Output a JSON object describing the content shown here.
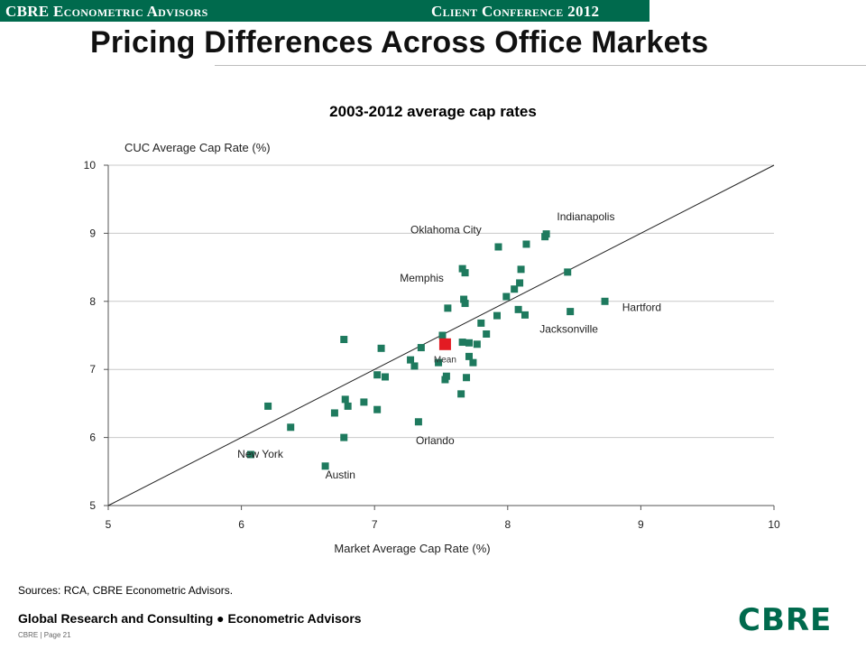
{
  "header": {
    "left_text": "CBRE Econometric Advisors",
    "right_text": "Client Conference 2012",
    "bar_color": "#006A4D"
  },
  "slide_title": "Pricing Differences Across Office Markets",
  "chart_data": {
    "type": "scatter",
    "title": "2003-2012 average cap rates",
    "xlabel": "Market Average Cap Rate (%)",
    "ylabel": "CUC Average Cap Rate (%)",
    "xlim": [
      5,
      10
    ],
    "ylim": [
      5,
      10
    ],
    "xticks": [
      "5",
      "6",
      "7",
      "8",
      "9",
      "10"
    ],
    "yticks": [
      "5",
      "6",
      "7",
      "8",
      "9",
      "10"
    ],
    "grid": "horizontal",
    "reference_line": "45-degree",
    "marker_color": "#1E7A5E",
    "mean_color": "#E31B23",
    "points": [
      [
        6.07,
        5.75
      ],
      [
        6.2,
        6.46
      ],
      [
        6.37,
        6.15
      ],
      [
        6.63,
        5.58
      ],
      [
        6.7,
        6.36
      ],
      [
        6.77,
        6.0
      ],
      [
        6.78,
        6.56
      ],
      [
        6.8,
        6.46
      ],
      [
        6.77,
        7.44
      ],
      [
        6.92,
        6.52
      ],
      [
        7.02,
        6.41
      ],
      [
        7.02,
        6.92
      ],
      [
        7.05,
        7.31
      ],
      [
        7.08,
        6.89
      ],
      [
        7.27,
        7.14
      ],
      [
        7.3,
        7.05
      ],
      [
        7.35,
        7.32
      ],
      [
        7.33,
        6.23
      ],
      [
        7.48,
        7.1
      ],
      [
        7.51,
        7.5
      ],
      [
        7.53,
        6.85
      ],
      [
        7.54,
        6.9
      ],
      [
        7.55,
        7.9
      ],
      [
        7.65,
        6.64
      ],
      [
        7.66,
        8.48
      ],
      [
        7.66,
        7.4
      ],
      [
        7.67,
        8.03
      ],
      [
        7.68,
        8.42
      ],
      [
        7.68,
        7.97
      ],
      [
        7.69,
        6.88
      ],
      [
        7.71,
        7.19
      ],
      [
        7.71,
        7.39
      ],
      [
        7.74,
        7.1
      ],
      [
        7.77,
        7.37
      ],
      [
        7.8,
        7.68
      ],
      [
        7.84,
        7.52
      ],
      [
        7.92,
        7.79
      ],
      [
        7.93,
        8.8
      ],
      [
        7.99,
        8.07
      ],
      [
        8.05,
        8.18
      ],
      [
        8.08,
        7.88
      ],
      [
        8.09,
        8.27
      ],
      [
        8.1,
        8.47
      ],
      [
        8.13,
        7.8
      ],
      [
        8.14,
        8.84
      ],
      [
        8.28,
        8.95
      ],
      [
        8.29,
        8.99
      ],
      [
        8.45,
        8.43
      ],
      [
        8.47,
        7.85
      ],
      [
        8.73,
        8.0
      ]
    ],
    "mean": {
      "x": 7.53,
      "y": 7.37,
      "label": "Mean"
    },
    "annotations": [
      {
        "text": "Indianapolis",
        "x": 8.37,
        "y": 9.19,
        "anchor": "start"
      },
      {
        "text": "Oklahoma City",
        "x": 7.27,
        "y": 9.0,
        "anchor": "start"
      },
      {
        "text": "Memphis",
        "x": 7.19,
        "y": 8.29,
        "anchor": "start"
      },
      {
        "text": "Hartford",
        "x": 8.86,
        "y": 7.86,
        "anchor": "start"
      },
      {
        "text": "Jacksonville",
        "x": 8.24,
        "y": 7.54,
        "anchor": "start"
      },
      {
        "text": "Orlando",
        "x": 7.31,
        "y": 5.9,
        "anchor": "start"
      },
      {
        "text": "New York",
        "x": 5.97,
        "y": 5.7,
        "anchor": "start"
      },
      {
        "text": "Austin",
        "x": 6.63,
        "y": 5.4,
        "anchor": "start"
      }
    ]
  },
  "sources": "Sources: RCA, CBRE Econometric Advisors.",
  "footer": {
    "org": "Global Research and Consulting ● Econometric Advisors",
    "page": "CBRE  |  Page 21",
    "logo": "CBRE",
    "logo_color": "#006A4D"
  }
}
